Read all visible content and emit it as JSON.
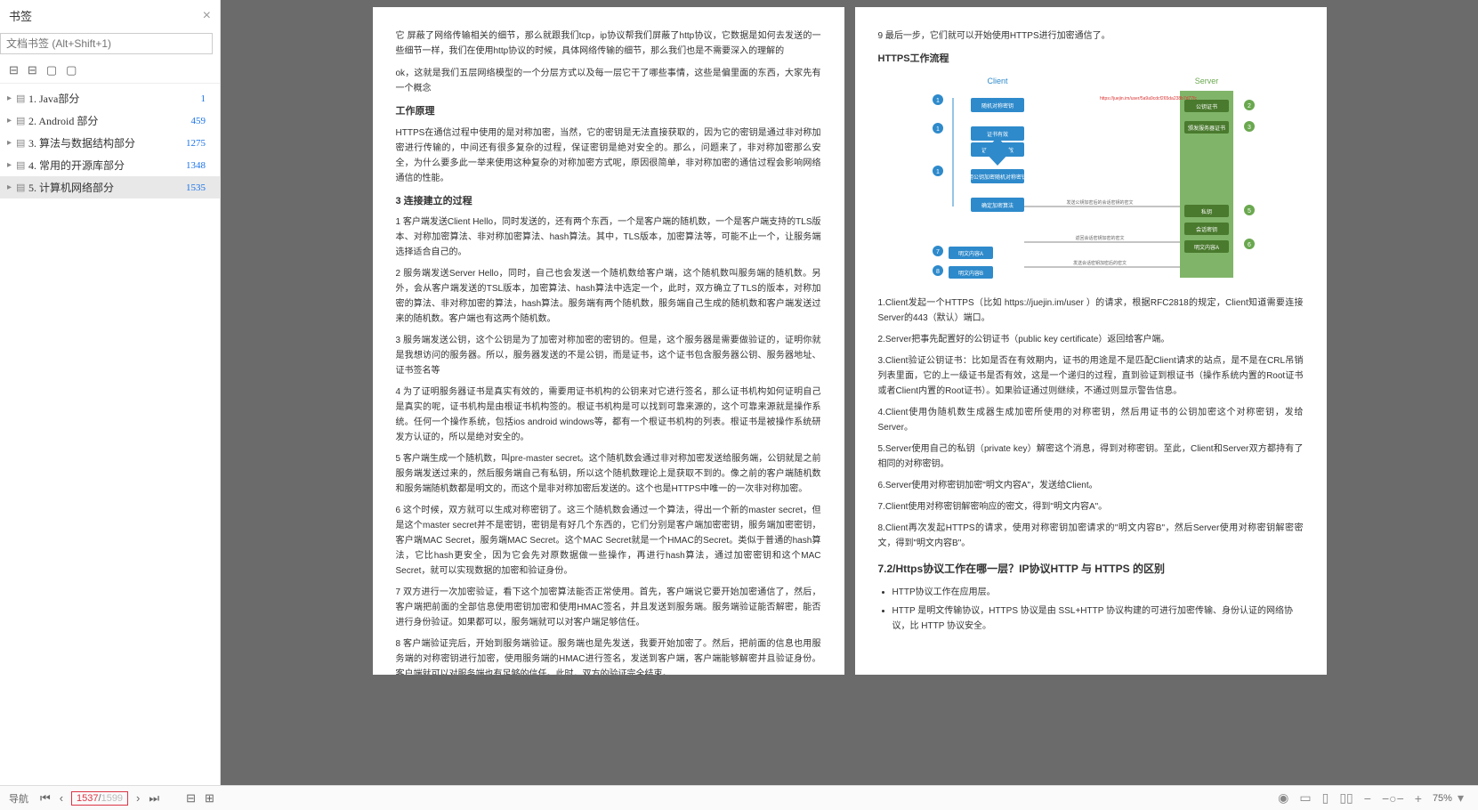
{
  "sidebar": {
    "title": "书签",
    "search_placeholder": "文档书签 (Alt+Shift+1)",
    "items": [
      {
        "label": "1. Java部分",
        "page": "1"
      },
      {
        "label": "2. Android 部分",
        "page": "459"
      },
      {
        "label": "3. 算法与数据结构部分",
        "page": "1275"
      },
      {
        "label": "4. 常用的开源库部分",
        "page": "1348"
      },
      {
        "label": "5. 计算机网络部分",
        "page": "1535"
      }
    ]
  },
  "left_page": {
    "p0": "它 屏蔽了网络传输相关的细节，那么就跟我们tcp，ip协议帮我们屏蔽了http协议，它数据是如何去发送的一些细节一样，我们在使用http协议的时候，具体网络传输的细节，那么我们也是不需要深入的理解的",
    "p1": "ok，这就是我们五层网络模型的一个分层方式以及每一层它干了哪些事情，这些是偏里面的东西，大家先有一个概念",
    "h_principle": "工作原理",
    "p2": "HTTPS在通信过程中使用的是对称加密，当然，它的密钥是无法直接获取的，因为它的密钥是通过非对称加密进行传输的，中间还有很多复杂的过程，保证密钥是绝对安全的。那么，问题来了，非对称加密那么安全，为什么要多此一举来使用这种复杂的对称加密方式呢，原因很简单，非对称加密的通信过程会影响网络通信的性能。",
    "h_3": "3 连接建立的过程",
    "steps": [
      "1 客户端发送Client Hello，同时发送的，还有两个东西，一个是客户端的随机数，一个是客户端支持的TLS版本、对称加密算法、非对称加密算法、hash算法。其中，TLS版本，加密算法等，可能不止一个，让服务端选择适合自己的。",
      "2 服务端发送Server Hello，同时，自己也会发送一个随机数给客户端，这个随机数叫服务端的随机数。另外，会从客户端发送的TSL版本，加密算法、hash算法中选定一个，此时，双方确立了TLS的版本，对称加密的算法、非对称加密的算法，hash算法。服务端有两个随机数，服务端自己生成的随机数和客户端发送过来的随机数。客户端也有这两个随机数。",
      "3 服务端发送公钥，这个公钥是为了加密对称加密的密钥的。但是，这个服务器是需要做验证的，证明你就是我想访问的服务器。所以，服务器发送的不是公钥，而是证书，这个证书包含服务器公钥、服务器地址、证书签名等",
      "4 为了证明服务器证书是真实有效的，需要用证书机构的公钥来对它进行签名，那么证书机构如何证明自己是真实的呢，证书机构是由根证书机构签的。根证书机构是可以找到可靠来源的，这个可靠来源就是操作系统。任何一个操作系统，包括ios android windows等，都有一个根证书机构的列表。根证书是被操作系统研发方认证的，所以是绝对安全的。",
      "5 客户端生成一个随机数，叫pre-master secret。这个随机数会通过非对称加密发送给服务端，公钥就是之前服务端发送过来的，然后服务端自己有私钥，所以这个随机数理论上是获取不到的。像之前的客户端随机数和服务端随机数都是明文的，而这个是非对称加密后发送的。这个也是HTTPS中唯一的一次非对称加密。",
      "6 这个时候，双方就可以生成对称密钥了。这三个随机数会通过一个算法，得出一个新的master secret，但是这个master secret并不是密钥，密钥是有好几个东西的，它们分别是客户端加密密钥，服务端加密密钥，客户端MAC Secret，服务端MAC Secret。这个MAC Secret就是一个HMAC的Secret。类似于普通的hash算法，它比hash更安全，因为它会先对原数据做一些操作，再进行hash算法，通过加密密钥和这个MAC Secret，就可以实现数据的加密和验证身份。",
      "7 双方进行一次加密验证，看下这个加密算法能否正常使用。首先，客户端说它要开始加密通信了，然后，客户端把前面的全部信息使用密钥加密和使用HMAC签名，并且发送到服务端。服务端验证能否解密，能否进行身份验证。如果都可以，服务端就可以对客户端足够信任。",
      "8 客户端验证完后，开始到服务端验证。服务端也是先发送，我要开始加密了。然后，把前面的信息也用服务端的对称密钥进行加密，使用服务端的HMAC进行签名，发送到客户端，客户端能够解密并且验证身份。客户端就可以对服务端也有足够的信任。此时，双方的验证完全结束。"
    ]
  },
  "right_page": {
    "p9": "9 最后一步，它们就可以开始使用HTTPS进行加密通信了。",
    "h_flow": "HTTPS工作流程",
    "diagram": {
      "client_label": "Client",
      "server_label": "Server",
      "client_color": "#2e8acb",
      "server_color": "#6aa84f",
      "arrow_color": "#888",
      "bg": "#f9f9f9",
      "red_url": "https://juejin.im/user/5a9a9cdcf265da238b7d77fc",
      "nodes_left": [
        "随机对称密钥",
        "证书有效",
        "证书是否有效",
        "用公钥加密随机对称密钥",
        "确定加密算法"
      ],
      "nodes_right": [
        "公钥证书",
        "颁发服务器证书",
        "私钥",
        "会话密钥",
        "明文内容A"
      ],
      "bottom_left": [
        "明文内容A",
        "明文内容B"
      ],
      "arrows": [
        "发送公钥加密后的会话密钥的密文",
        "返回会话密钥加密的密文",
        "发送会话密钥加密后的密文"
      ],
      "left_nums": [
        "1",
        "1",
        "1",
        "7",
        "8"
      ],
      "right_nums": [
        "2",
        "3",
        "5",
        "6"
      ]
    },
    "flow_steps": [
      "1.Client发起一个HTTPS（比如 https://juejin.im/user ）的请求，根据RFC2818的规定，Client知道需要连接Server的443（默认）端口。",
      "2.Server把事先配置好的公钥证书（public key certificate）返回给客户端。",
      "3.Client验证公钥证书：比如是否在有效期内，证书的用途是不是匹配Client请求的站点，是不是在CRL吊销列表里面，它的上一级证书是否有效，这是一个递归的过程，直到验证到根证书（操作系统内置的Root证书或者Client内置的Root证书）。如果验证通过则继续，不通过则显示警告信息。",
      "4.Client使用伪随机数生成器生成加密所使用的对称密钥，然后用证书的公钥加密这个对称密钥，发给Server。",
      "5.Server使用自己的私钥（private key）解密这个消息，得到对称密钥。至此，Client和Server双方都持有了相同的对称密钥。",
      "6.Server使用对称密钥加密\"明文内容A\"，发送给Client。",
      "7.Client使用对称密钥解密响应的密文，得到\"明文内容A\"。",
      "8.Client再次发起HTTPS的请求，使用对称密钥加密请求的\"明文内容B\"，然后Server使用对称密钥解密密文，得到\"明文内容B\"。"
    ],
    "sec72_title": "7.2/Https协议工作在哪一层？IP协议HTTP 与 HTTPS 的区别",
    "bullets": [
      "HTTP协议工作在应用层。",
      "HTTP 是明文传输协议，HTTPS 协议是由 SSL+HTTP 协议构建的可进行加密传输、身份认证的网络协议，比 HTTP 协议安全。"
    ]
  },
  "status": {
    "nav_label": "导航",
    "current_page": "1537",
    "total_pages": "1599",
    "zoom": "75%"
  }
}
